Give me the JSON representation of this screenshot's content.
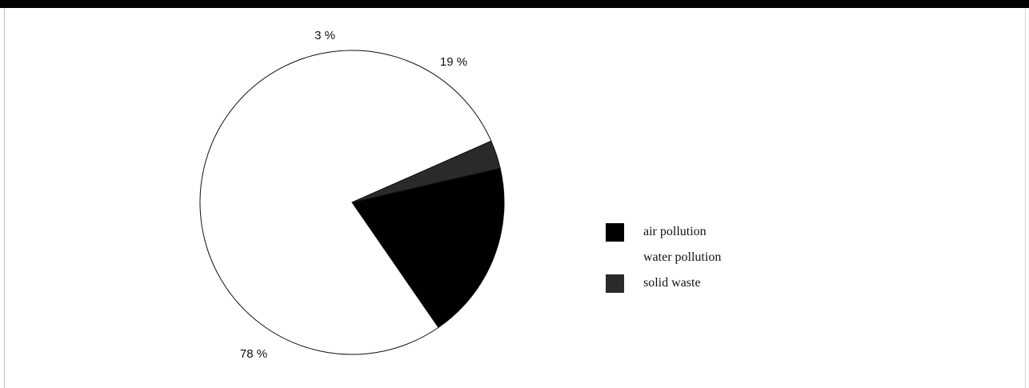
{
  "chart_data": {
    "type": "pie",
    "title": "",
    "series": [
      {
        "labels": [
          "air pollution",
          "water pollution",
          "solid waste"
        ],
        "values": [
          19,
          78,
          3
        ]
      }
    ],
    "data_labels": [
      "19 %",
      "78 %",
      "3 %"
    ],
    "colors": [
      "#000000",
      "#ffffff",
      "#2a2a2a"
    ],
    "legend": {
      "position": "right",
      "entries": [
        "air pollution",
        "water pollution",
        "solid waste"
      ]
    }
  }
}
